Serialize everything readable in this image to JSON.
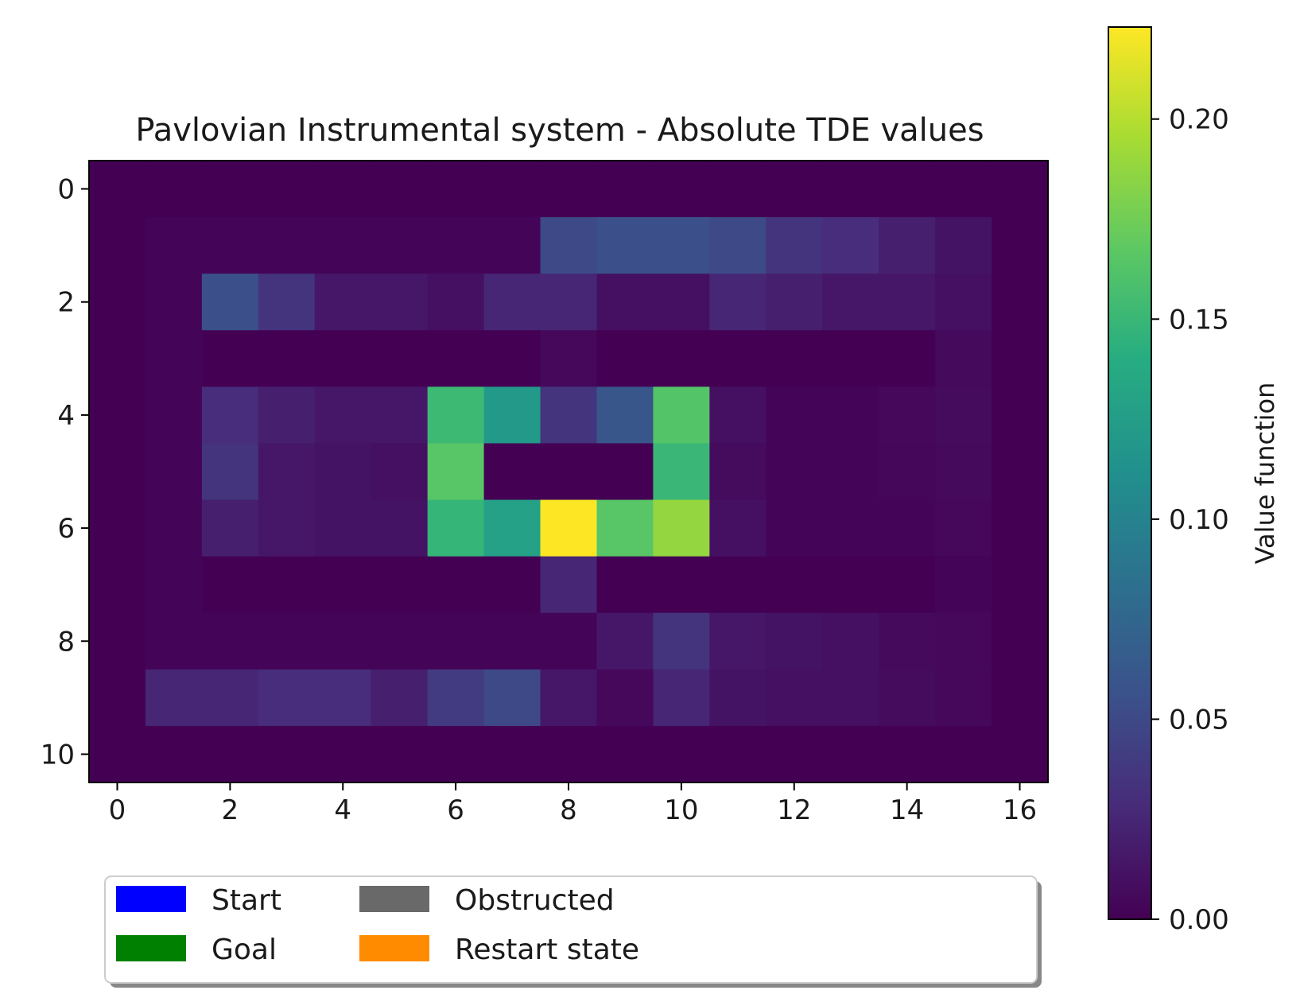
{
  "chart_data": {
    "type": "heatmap",
    "title": "Pavlovian Instrumental system - Absolute TDE values",
    "xlabel": "",
    "ylabel": "",
    "rows": 11,
    "cols": 17,
    "x_ticks": [
      0,
      2,
      4,
      6,
      8,
      10,
      12,
      14,
      16
    ],
    "y_ticks": [
      0,
      2,
      4,
      6,
      8,
      10
    ],
    "colormap": "viridis",
    "vmin": 0.0,
    "vmax": 0.223,
    "colorbar": {
      "label": "Value function",
      "ticks": [
        0.0,
        0.05,
        0.1,
        0.15,
        0.2
      ],
      "tick_labels": [
        "0.00",
        "0.05",
        "0.10",
        "0.15",
        "0.20"
      ]
    },
    "values": [
      [
        0,
        0,
        0,
        0,
        0,
        0,
        0,
        0,
        0,
        0,
        0,
        0,
        0,
        0,
        0,
        0,
        0
      ],
      [
        0,
        0.003,
        0.003,
        0.002,
        0.002,
        0.002,
        0.003,
        0.002,
        0.05,
        0.055,
        0.055,
        0.05,
        0.035,
        0.03,
        0.02,
        0.012,
        0
      ],
      [
        0,
        0.003,
        0.055,
        0.035,
        0.015,
        0.015,
        0.01,
        0.025,
        0.025,
        0.01,
        0.01,
        0.025,
        0.02,
        0.015,
        0.015,
        0.01,
        0
      ],
      [
        0,
        0.003,
        0,
        0,
        0,
        0,
        0,
        0,
        0.005,
        0,
        0,
        0,
        0,
        0,
        0,
        0.006,
        0
      ],
      [
        0,
        0.002,
        0.03,
        0.02,
        0.015,
        0.015,
        0.152,
        0.12,
        0.035,
        0.06,
        0.163,
        0.01,
        0.003,
        0.003,
        0.005,
        0.007,
        0
      ],
      [
        0,
        0.002,
        0.035,
        0.015,
        0.012,
        0.01,
        0.165,
        0,
        0,
        0,
        0.15,
        0.007,
        0.003,
        0.003,
        0.004,
        0.006,
        0
      ],
      [
        0,
        0.003,
        0.02,
        0.015,
        0.012,
        0.012,
        0.148,
        0.128,
        0.223,
        0.165,
        0.188,
        0.01,
        0.003,
        0.002,
        0.003,
        0.005,
        0
      ],
      [
        0,
        0.003,
        0,
        0,
        0,
        0,
        0,
        0,
        0.025,
        0,
        0,
        0,
        0,
        0,
        0,
        0.003,
        0
      ],
      [
        0,
        0.003,
        0.003,
        0.002,
        0.002,
        0.002,
        0.002,
        0.002,
        0.002,
        0.015,
        0.035,
        0.015,
        0.012,
        0.01,
        0.006,
        0.005,
        0
      ],
      [
        0,
        0.025,
        0.025,
        0.03,
        0.03,
        0.02,
        0.04,
        0.05,
        0.015,
        0.005,
        0.025,
        0.012,
        0.01,
        0.01,
        0.007,
        0.005,
        0
      ],
      [
        0,
        0,
        0,
        0,
        0,
        0,
        0,
        0,
        0,
        0,
        0,
        0,
        0,
        0,
        0,
        0,
        0
      ]
    ],
    "legend": {
      "placement": "below",
      "ncol": 3,
      "entries": [
        {
          "label": "Start",
          "color": "#0000ff"
        },
        {
          "label": "Goal",
          "color": "#008000"
        },
        {
          "label": "Obstructed",
          "color": "#696969"
        },
        {
          "label": "Restart state",
          "color": "#ff8c00"
        }
      ]
    }
  }
}
